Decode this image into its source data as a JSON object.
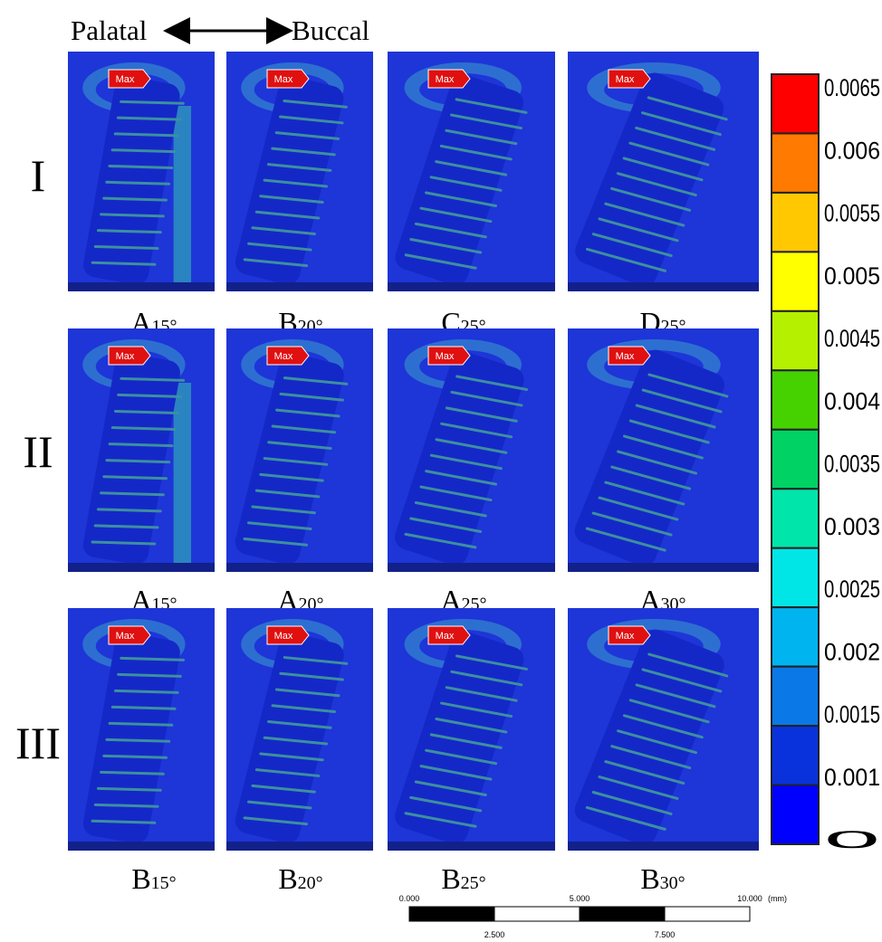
{
  "header": {
    "left": "Palatal",
    "right": "Buccal"
  },
  "marker_label": "Max",
  "rows": [
    {
      "label": "I",
      "panels": [
        {
          "letter": "A",
          "angle": "15°"
        },
        {
          "letter": "B",
          "angle": "20°"
        },
        {
          "letter": "C",
          "angle": "25°"
        },
        {
          "letter": "D",
          "angle": "25°"
        }
      ]
    },
    {
      "label": "II",
      "panels": [
        {
          "letter": "A",
          "angle": "15°"
        },
        {
          "letter": "A",
          "angle": "20°"
        },
        {
          "letter": "A",
          "angle": "25°"
        },
        {
          "letter": "A",
          "angle": "30°"
        }
      ]
    },
    {
      "label": "III",
      "panels": [
        {
          "letter": "B",
          "angle": "15°"
        },
        {
          "letter": "B",
          "angle": "20°"
        },
        {
          "letter": "B",
          "angle": "25°"
        },
        {
          "letter": "B",
          "angle": "30°"
        }
      ]
    }
  ],
  "colorbar": {
    "labels": [
      "0.0065",
      "0.006",
      "0.0055",
      "0.005",
      "0.0045",
      "0.004",
      "0.0035",
      "0.003",
      "0.0025",
      "0.002",
      "0.0015",
      "0.001",
      "0"
    ],
    "colors": [
      "#ff0000",
      "#ff7a00",
      "#ffc800",
      "#ffff00",
      "#b4f000",
      "#46d200",
      "#00d264",
      "#00e6aa",
      "#00e6e6",
      "#00b4f0",
      "#0a78e6",
      "#0a32dc",
      "#0000ff"
    ]
  },
  "scale_bar": {
    "top_labels": [
      "0.000",
      "5.000",
      "10.000"
    ],
    "unit": "(mm)",
    "bottom_labels": [
      "2.500",
      "7.500"
    ]
  }
}
